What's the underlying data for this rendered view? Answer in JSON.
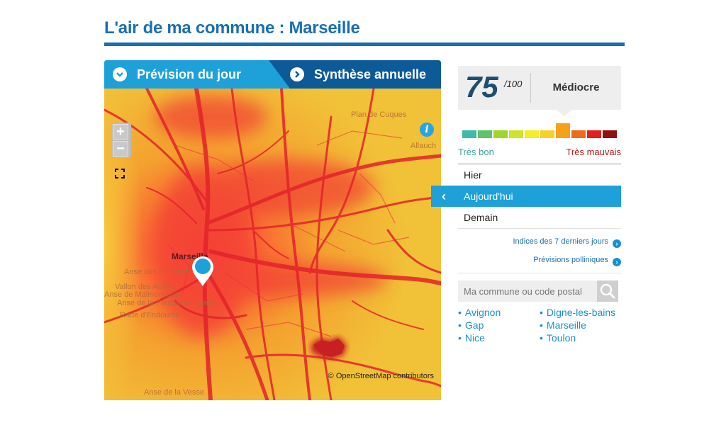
{
  "page": {
    "title": "L'air de ma commune : Marseille"
  },
  "tabs": [
    {
      "label": "Prévision du jour",
      "icon": "chevron-down-icon",
      "active": true
    },
    {
      "label": "Synthèse annuelle",
      "icon": "chevron-right-icon",
      "active": false
    }
  ],
  "map": {
    "zoom_in": "+",
    "zoom_out": "−",
    "info": "i",
    "attribution": "© OpenStreetMap contributors",
    "places": [
      "Plan de Cuques",
      "Allauch",
      "Marseille",
      "Anse des Catalans",
      "Vallon des Auffes",
      "Anse de Malmousque",
      "Anse de la Fausse Monnaie",
      "Rade d'Endoume",
      "Anse de la Vesse"
    ]
  },
  "score": {
    "value": "75",
    "max": "/100",
    "label": "Médiocre",
    "scale_level": 6,
    "scale_colors": [
      "#3dbba9",
      "#5dc46b",
      "#9fd62b",
      "#d0e22a",
      "#f6ec27",
      "#f8d126",
      "#f5a21a",
      "#ee6b17",
      "#e2201c",
      "#8e1010"
    ],
    "scale_min_label": "Très bon",
    "scale_max_label": "Très mauvais"
  },
  "days": [
    {
      "label": "Hier",
      "active": false
    },
    {
      "label": "Aujourd'hui",
      "active": true
    },
    {
      "label": "Demain",
      "active": false
    }
  ],
  "links": [
    {
      "label": "Indices des 7 derniers jours",
      "icon": "chevron-right-circle-icon"
    },
    {
      "label": "Prévisions polliniques",
      "icon": "chevron-right-circle-icon"
    }
  ],
  "search": {
    "placeholder": "Ma commune ou code postal",
    "icon": "search-icon"
  },
  "cities_left": [
    "Avignon",
    "Gap",
    "Nice"
  ],
  "cities_right": [
    "Digne-les-bains",
    "Marseille",
    "Toulon"
  ]
}
